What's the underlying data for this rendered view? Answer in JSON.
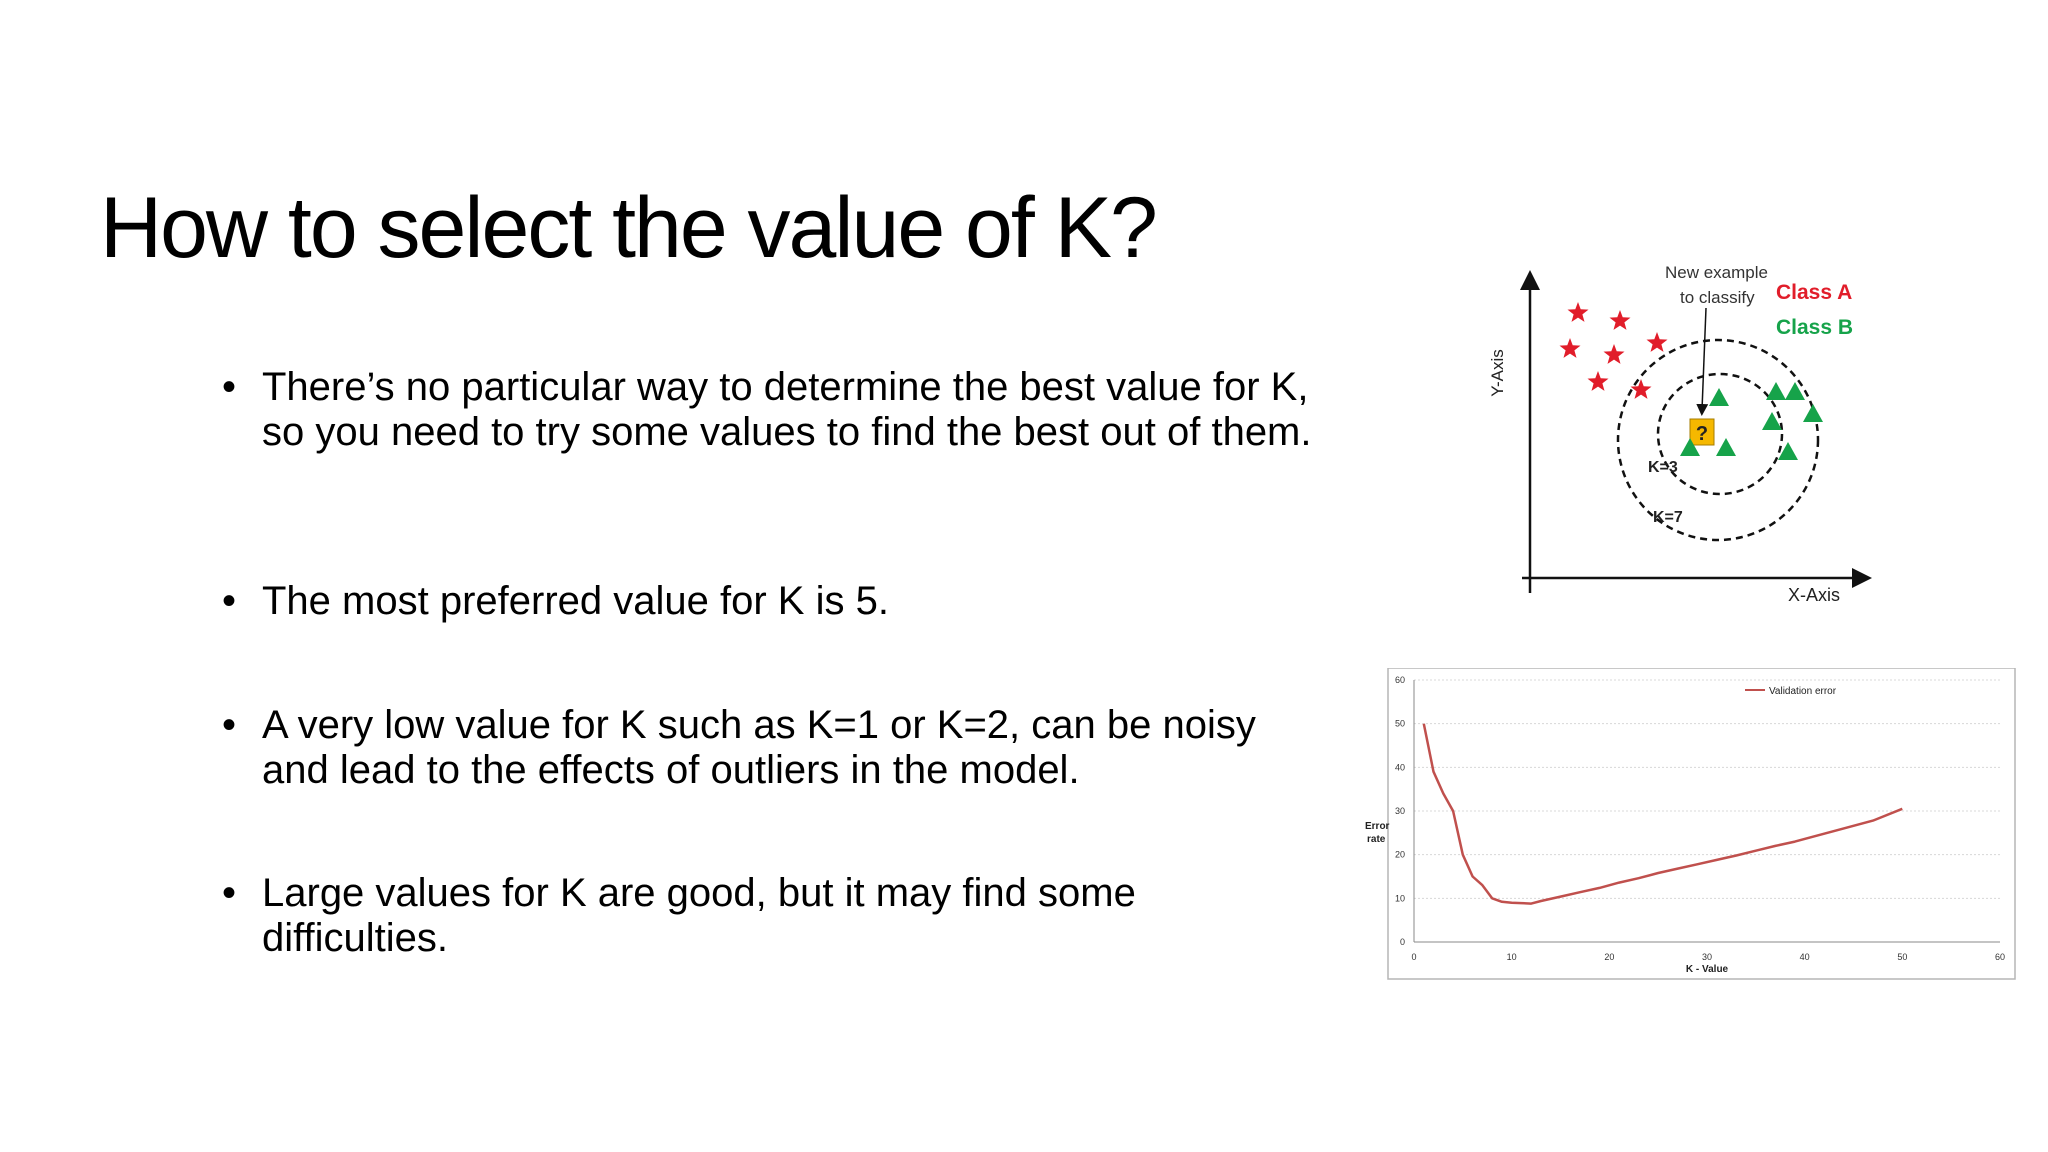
{
  "slide": {
    "title": "How to select the value of K?",
    "bullets": [
      "There’s no particular way to determine the best value for K, so you need to try some values to find the best out of them.",
      "The most preferred value for K is 5.",
      "A very low value for K such as K=1 or K=2, can be noisy and lead to the effects of outliers in the model.",
      "Large values for K are good, but it may find some difficulties."
    ],
    "bullet_glyph": "•"
  },
  "knn_diagram": {
    "y_axis_label": "Y-Axis",
    "x_axis_label": "X-Axis",
    "annotation_line1": "New example",
    "annotation_line2": "to classify",
    "class_a_label": "Class A",
    "class_b_label": "Class B",
    "query_symbol": "?",
    "k3_label": "K=3",
    "k7_label": "K=7",
    "class_a_color": "#e11d2a",
    "class_b_color": "#16a34a",
    "query_color": "#f5b800"
  },
  "chart_data": {
    "type": "line",
    "title": "",
    "xlabel": "K - Value",
    "ylabel": "Error rate",
    "ylabel_lines": [
      "Error",
      "rate"
    ],
    "xlim": [
      0,
      60
    ],
    "ylim": [
      0,
      60
    ],
    "xticks": [
      0,
      10,
      20,
      30,
      40,
      50,
      60
    ],
    "yticks": [
      0,
      10,
      20,
      30,
      40,
      50,
      60
    ],
    "grid": true,
    "legend_position": "top-right",
    "series": [
      {
        "name": "Validation error",
        "color": "#c0504d",
        "x": [
          1,
          2,
          3,
          4,
          5,
          6,
          7,
          8,
          9,
          10,
          11,
          12,
          13,
          15,
          17,
          19,
          21,
          23,
          25,
          27,
          29,
          31,
          33,
          35,
          37,
          39,
          41,
          43,
          45,
          47,
          50
        ],
        "y": [
          50,
          39,
          34,
          30,
          20,
          15,
          13,
          10,
          9.2,
          9,
          8.9,
          8.8,
          9.4,
          10.4,
          11.4,
          12.4,
          13.6,
          14.6,
          15.8,
          16.8,
          17.8,
          18.8,
          19.8,
          20.9,
          22,
          23,
          24.2,
          25.4,
          26.6,
          27.8,
          30.5
        ]
      }
    ]
  }
}
